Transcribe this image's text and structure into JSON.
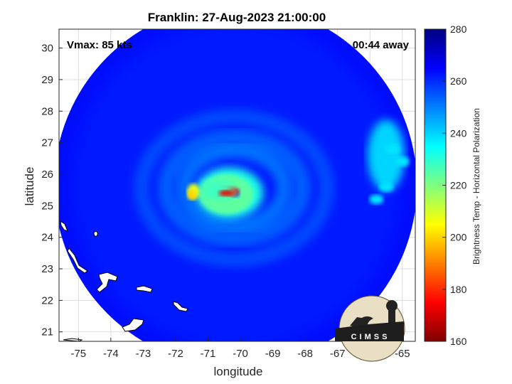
{
  "chart_data": {
    "type": "heatmap",
    "title": "Franklin: 27-Aug-2023 21:00:00",
    "annotations": {
      "vmax": "Vmax: 85 kts",
      "time_away": "00:44 away"
    },
    "xlabel": "longitude",
    "ylabel": "latitude",
    "xlim": [
      -75.6,
      -64.6
    ],
    "ylim": [
      20.7,
      30.6
    ],
    "xticks": [
      -75,
      -74,
      -73,
      -72,
      -71,
      -70,
      -69,
      -68,
      -67,
      -66,
      -65
    ],
    "yticks": [
      21,
      22,
      23,
      24,
      25,
      26,
      27,
      28,
      29,
      30
    ],
    "grid": true,
    "colorbar": {
      "label": "Brightness Temp - Horizontal Polarization",
      "range": [
        160,
        280
      ],
      "ticks": [
        160,
        180,
        200,
        220,
        240,
        260,
        280
      ],
      "colormap": "jet"
    },
    "swath": {
      "center_lon": -70.15,
      "center_lat": 25.65,
      "radius_deg": 5.6,
      "background_tb": 262
    },
    "features": [
      {
        "name": "eye",
        "lon": -70.15,
        "lat": 25.4,
        "tb": 250
      },
      {
        "name": "eyewall-core",
        "lon": -70.4,
        "lat": 25.45,
        "tb": 178
      },
      {
        "name": "western-eyewall",
        "lon": -71.45,
        "lat": 25.45,
        "tb": 208
      },
      {
        "name": "inner-band",
        "lon": -70.7,
        "lat": 25.5,
        "tb": 228
      },
      {
        "name": "outer-band-east",
        "lon": -65.5,
        "lat": 26.6,
        "tb": 240
      }
    ],
    "coast_note": "Bahamas outlines"
  },
  "logo": {
    "text": "CIMSS"
  },
  "colors": {
    "swath_bg": "#1a3dea",
    "axes": "#262626",
    "grid": "#dcdcdc"
  }
}
